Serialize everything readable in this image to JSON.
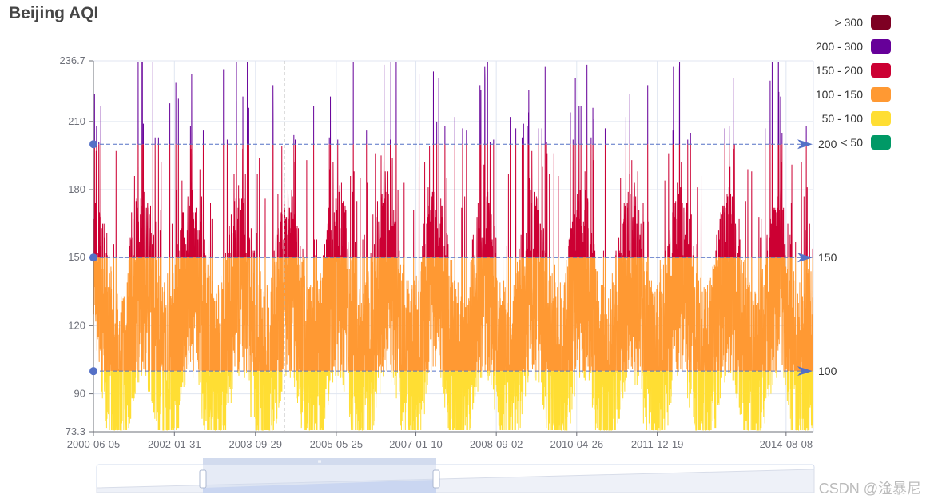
{
  "title": "Beijing AQI",
  "watermark": "CSDN @淦暴尼",
  "chart_data": {
    "type": "line",
    "title": "Beijing AQI",
    "xlabel": "",
    "ylabel": "",
    "x_tick_labels": [
      "2000-06-05",
      "2002-01-31",
      "2003-09-29",
      "2005-05-25",
      "2007-01-10",
      "2008-09-02",
      "2010-04-26",
      "2011-12-19",
      "2014-08-08"
    ],
    "y_tick_labels": [
      "73.3",
      "90",
      "120",
      "150",
      "180",
      "210",
      "236.7"
    ],
    "ylim": [
      73.3,
      236.7
    ],
    "x_range": [
      "2000-06-05",
      "2015-02-28"
    ],
    "grid": true,
    "legend_position": "top-right",
    "mark_lines": [
      {
        "label": "100",
        "value": 100
      },
      {
        "label": "150",
        "value": 150
      },
      {
        "label": "200",
        "value": 200
      }
    ],
    "visual_map": [
      {
        "label": "> 300",
        "min": 300,
        "color": "#7e0023"
      },
      {
        "label": "200 - 300",
        "min": 200,
        "max": 300,
        "color": "#660099"
      },
      {
        "label": "150 - 200",
        "min": 150,
        "max": 200,
        "color": "#cc0033"
      },
      {
        "label": "100 - 150",
        "min": 100,
        "max": 150,
        "color": "#ff9933"
      },
      {
        "label": "50 - 100",
        "min": 50,
        "max": 100,
        "color": "#ffde33"
      },
      {
        "label": "< 50",
        "max": 50,
        "color": "#096"
      }
    ],
    "series": [
      {
        "values": []
      }
    ]
  },
  "colors": {
    "axis": "#6e7079",
    "grid": "#e0e6f1",
    "markline": "#5470c6",
    "zoom_fill": "#d2dbee",
    "zoom_border": "#d2dbee"
  }
}
